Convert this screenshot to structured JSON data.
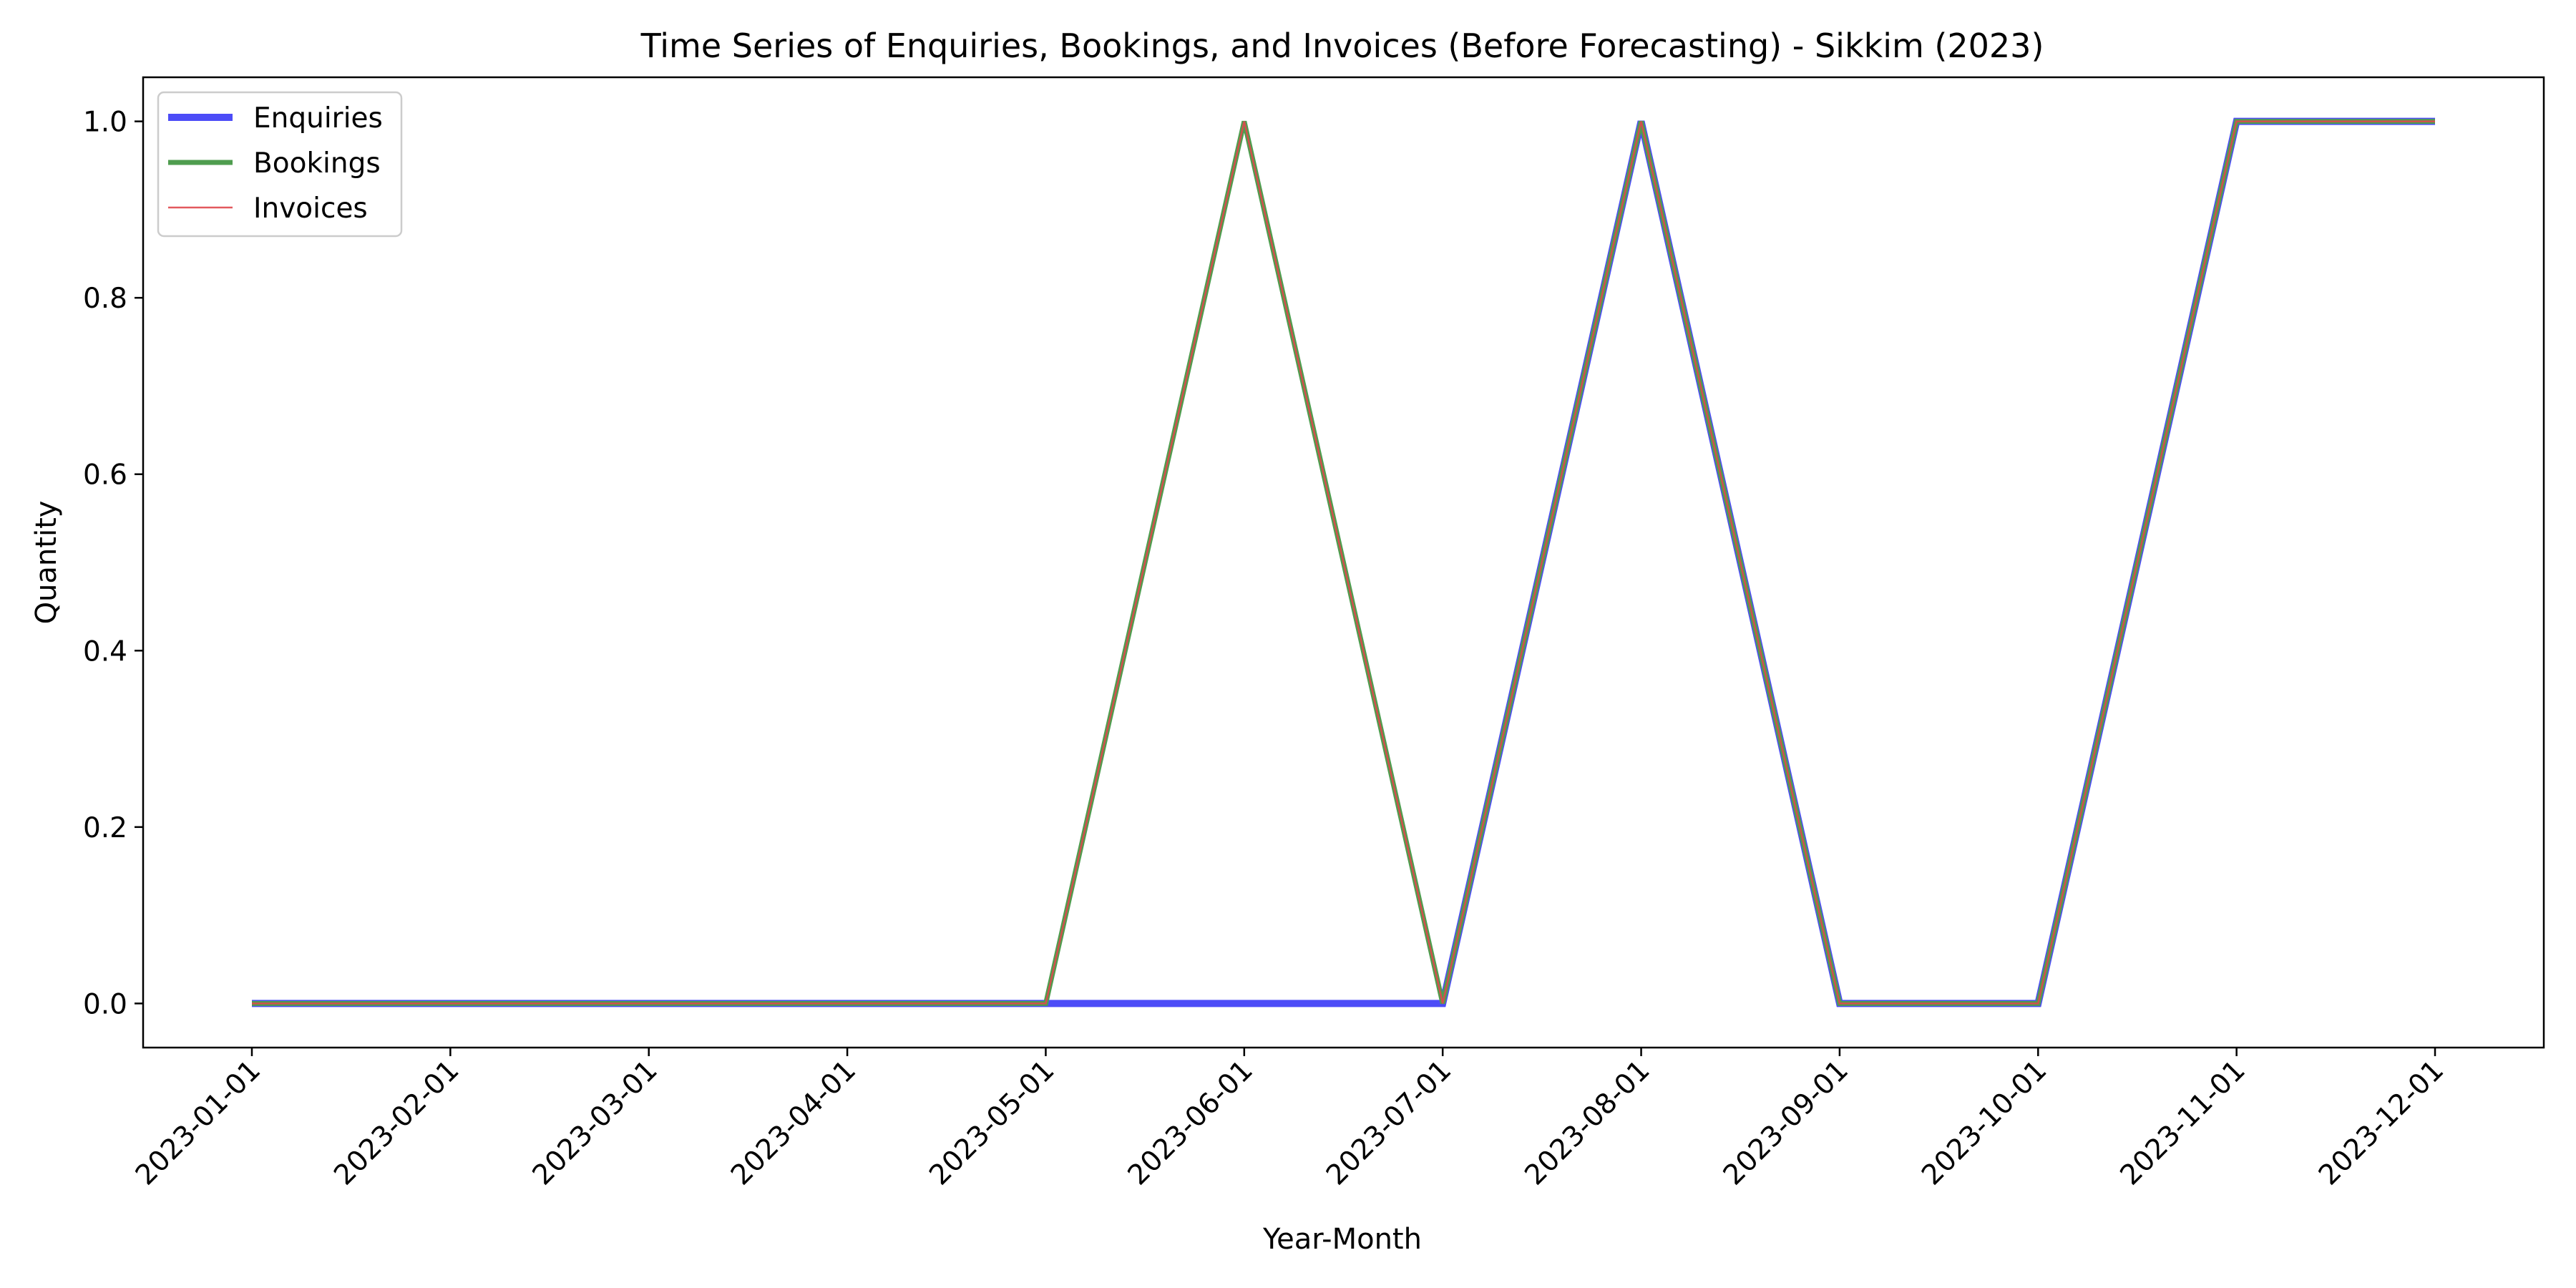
{
  "chart_data": {
    "type": "line",
    "title": "Time Series of Enquiries, Bookings, and Invoices (Before Forecasting) - Sikkim (2023)",
    "xlabel": "Year-Month",
    "ylabel": "Quantity",
    "x": [
      "2023-01-01",
      "2023-02-01",
      "2023-03-01",
      "2023-04-01",
      "2023-05-01",
      "2023-06-01",
      "2023-07-01",
      "2023-08-01",
      "2023-09-01",
      "2023-10-01",
      "2023-11-01",
      "2023-12-01"
    ],
    "ylim": [
      -0.05,
      1.05
    ],
    "yticks": [
      "0.0",
      "0.2",
      "0.4",
      "0.6",
      "0.8",
      "1.0"
    ],
    "grid": false,
    "legend_position": "upper-left",
    "series": [
      {
        "name": "Enquiries",
        "color": "#4c4cf7",
        "values": [
          0,
          0,
          0,
          0,
          0,
          0,
          0,
          1,
          0,
          0,
          1,
          1
        ]
      },
      {
        "name": "Bookings",
        "color": "#4f9d4f",
        "values": [
          0,
          0,
          0,
          0,
          0,
          1,
          0,
          1,
          0,
          0,
          1,
          1
        ]
      },
      {
        "name": "Invoices",
        "color": "#e0474c",
        "values": [
          0,
          0,
          0,
          0,
          0,
          1,
          0,
          1,
          0,
          0,
          1,
          1
        ]
      }
    ]
  }
}
